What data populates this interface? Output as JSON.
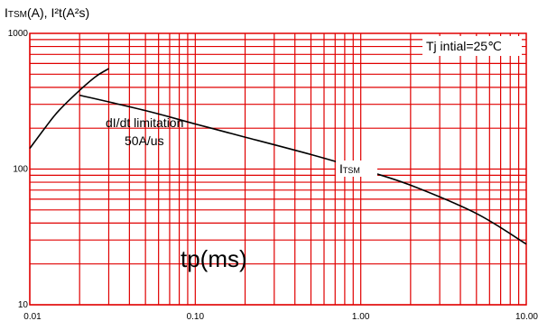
{
  "chart_data": {
    "type": "line",
    "title": "",
    "ylabel_main": "I",
    "ylabel_main_sub": "TSM",
    "ylabel_main_unit": "(A),  I²t(A²s)",
    "xlabel": "tp(ms)",
    "condition_label": "Tj  intial=25℃",
    "annotation_line1": "dI/dt  limitation",
    "annotation_line2": "50A/us",
    "series_label_main": "I",
    "series_label_sub": "TSM",
    "x_scale": "log",
    "y_scale": "log",
    "xlim": [
      0.01,
      10
    ],
    "ylim": [
      10,
      1000
    ],
    "x_ticks": [
      {
        "value": 0.01,
        "label": "0.01"
      },
      {
        "value": 0.1,
        "label": "0.10"
      },
      {
        "value": 1,
        "label": "1.00"
      },
      {
        "value": 10,
        "label": "10.00"
      }
    ],
    "y_ticks": [
      {
        "value": 10,
        "label": "10"
      },
      {
        "value": 100,
        "label": "100"
      },
      {
        "value": 1000,
        "label": "1000"
      }
    ],
    "grid": true,
    "grid_color": "#e00000",
    "line_color": "#000000",
    "series": [
      {
        "name": "ITSM",
        "x": [
          0.02,
          0.05,
          0.1,
          0.2,
          0.5,
          1,
          2,
          5,
          10
        ],
        "y": [
          350,
          270,
          215,
          172,
          128,
          100,
          76,
          47,
          28
        ]
      },
      {
        "name": "",
        "x": [
          0.01,
          0.0125,
          0.015,
          0.02,
          0.025,
          0.03
        ],
        "y": [
          142,
          205,
          270,
          380,
          480,
          550
        ]
      }
    ]
  }
}
